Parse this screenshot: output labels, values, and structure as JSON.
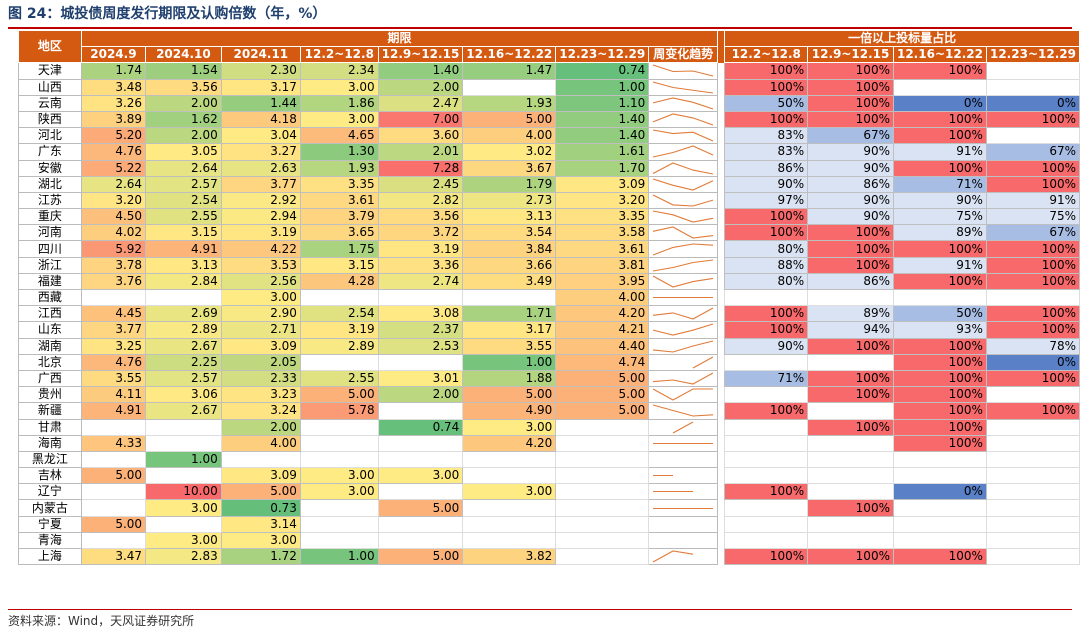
{
  "title": "图 24：城投债周度发行期限及认购倍数（年，%）",
  "source": "资料来源：Wind，天风证券研究所",
  "headers": {
    "region": "地区",
    "term_group": "期限",
    "ratio_group": "一倍以上投标量占比",
    "term_cols": [
      "2024.9",
      "2024.10",
      "2024.11",
      "12.2~12.8",
      "12.9~12.15",
      "12.16~12.22",
      "12.23~12.29"
    ],
    "trend_col": "周变化趋势",
    "ratio_cols": [
      "12.2~12.8",
      "12.9~12.15",
      "12.16~12.22",
      "12.23~12.29"
    ]
  },
  "colors": {
    "header_bg": "#d45a12",
    "red": "#f8696b",
    "light_blue": "#dae3f3",
    "mid_blue": "#a8bde3",
    "blue": "#5a80c8",
    "sparkline": "#e07b39"
  },
  "rows": [
    {
      "region": "天津",
      "terms": [
        "1.74",
        "1.54",
        "2.30",
        "2.34",
        "1.40",
        "1.47",
        "0.74"
      ],
      "ratios": [
        "100%",
        "100%",
        "100%",
        ""
      ]
    },
    {
      "region": "山西",
      "terms": [
        "3.48",
        "3.56",
        "3.17",
        "3.00",
        "2.00",
        "",
        "1.00"
      ],
      "ratios": [
        "100%",
        "100%",
        "",
        ""
      ]
    },
    {
      "region": "云南",
      "terms": [
        "3.26",
        "2.00",
        "1.44",
        "1.86",
        "2.47",
        "1.93",
        "1.10"
      ],
      "ratios": [
        "50%",
        "100%",
        "0%",
        "0%"
      ]
    },
    {
      "region": "陕西",
      "terms": [
        "3.89",
        "1.62",
        "4.18",
        "3.00",
        "7.00",
        "5.00",
        "1.40"
      ],
      "ratios": [
        "100%",
        "100%",
        "100%",
        "100%"
      ]
    },
    {
      "region": "河北",
      "terms": [
        "5.20",
        "2.00",
        "3.04",
        "4.65",
        "3.60",
        "4.00",
        "1.40"
      ],
      "ratios": [
        "83%",
        "67%",
        "100%",
        ""
      ]
    },
    {
      "region": "广东",
      "terms": [
        "4.76",
        "3.05",
        "3.27",
        "1.30",
        "2.01",
        "3.02",
        "1.61"
      ],
      "ratios": [
        "83%",
        "90%",
        "91%",
        "67%"
      ]
    },
    {
      "region": "安徽",
      "terms": [
        "5.22",
        "2.64",
        "2.63",
        "1.93",
        "7.28",
        "3.67",
        "1.70"
      ],
      "ratios": [
        "86%",
        "90%",
        "100%",
        "100%"
      ]
    },
    {
      "region": "湖北",
      "terms": [
        "2.64",
        "2.57",
        "3.77",
        "3.35",
        "2.45",
        "1.79",
        "3.09"
      ],
      "ratios": [
        "90%",
        "86%",
        "71%",
        "100%"
      ]
    },
    {
      "region": "江苏",
      "terms": [
        "3.20",
        "2.54",
        "2.92",
        "3.61",
        "2.82",
        "2.73",
        "3.20"
      ],
      "ratios": [
        "97%",
        "90%",
        "90%",
        "91%"
      ]
    },
    {
      "region": "重庆",
      "terms": [
        "4.50",
        "2.55",
        "2.94",
        "3.79",
        "3.56",
        "3.13",
        "3.35"
      ],
      "ratios": [
        "100%",
        "90%",
        "75%",
        "75%"
      ]
    },
    {
      "region": "河南",
      "terms": [
        "4.02",
        "3.15",
        "3.19",
        "3.65",
        "3.72",
        "3.54",
        "3.58"
      ],
      "ratios": [
        "100%",
        "100%",
        "89%",
        "67%"
      ]
    },
    {
      "region": "四川",
      "terms": [
        "5.92",
        "4.91",
        "4.22",
        "1.75",
        "3.19",
        "3.84",
        "3.61"
      ],
      "ratios": [
        "80%",
        "100%",
        "100%",
        "100%"
      ]
    },
    {
      "region": "浙江",
      "terms": [
        "3.78",
        "3.13",
        "3.53",
        "3.15",
        "3.36",
        "3.66",
        "3.81"
      ],
      "ratios": [
        "88%",
        "100%",
        "91%",
        "100%"
      ]
    },
    {
      "region": "福建",
      "terms": [
        "3.76",
        "2.84",
        "2.56",
        "4.28",
        "2.74",
        "3.49",
        "3.95"
      ],
      "ratios": [
        "80%",
        "86%",
        "100%",
        "100%"
      ]
    },
    {
      "region": "西藏",
      "terms": [
        "",
        "",
        "3.00",
        "",
        "",
        "",
        "4.00"
      ],
      "ratios": [
        "",
        "",
        "",
        ""
      ]
    },
    {
      "region": "江西",
      "terms": [
        "4.45",
        "2.69",
        "2.90",
        "2.54",
        "3.08",
        "1.71",
        "4.20"
      ],
      "ratios": [
        "100%",
        "89%",
        "50%",
        "100%"
      ]
    },
    {
      "region": "山东",
      "terms": [
        "3.77",
        "2.89",
        "2.71",
        "3.19",
        "2.37",
        "3.17",
        "4.21"
      ],
      "ratios": [
        "100%",
        "94%",
        "93%",
        "100%"
      ]
    },
    {
      "region": "湖南",
      "terms": [
        "3.25",
        "2.67",
        "3.09",
        "2.89",
        "2.53",
        "3.55",
        "4.40"
      ],
      "ratios": [
        "90%",
        "100%",
        "100%",
        "78%"
      ]
    },
    {
      "region": "北京",
      "terms": [
        "4.76",
        "2.25",
        "2.05",
        "",
        "",
        "1.00",
        "4.74"
      ],
      "ratios": [
        "",
        "",
        "100%",
        "0%"
      ]
    },
    {
      "region": "广西",
      "terms": [
        "3.55",
        "2.57",
        "2.33",
        "2.55",
        "3.01",
        "1.88",
        "5.00"
      ],
      "ratios": [
        "71%",
        "100%",
        "100%",
        "100%"
      ]
    },
    {
      "region": "贵州",
      "terms": [
        "4.11",
        "3.06",
        "3.23",
        "5.00",
        "2.00",
        "5.00",
        "5.00"
      ],
      "ratios": [
        "",
        "100%",
        "100%",
        ""
      ]
    },
    {
      "region": "新疆",
      "terms": [
        "4.91",
        "2.67",
        "3.24",
        "5.78",
        "",
        "4.90",
        "5.00"
      ],
      "ratios": [
        "100%",
        "",
        "100%",
        "100%"
      ]
    },
    {
      "region": "甘肃",
      "terms": [
        "",
        "",
        "2.00",
        "",
        "0.74",
        "3.00",
        ""
      ],
      "ratios": [
        "",
        "100%",
        "100%",
        ""
      ]
    },
    {
      "region": "海南",
      "terms": [
        "4.33",
        "",
        "4.00",
        "",
        "",
        "4.20",
        ""
      ],
      "ratios": [
        "",
        "",
        "100%",
        ""
      ]
    },
    {
      "region": "黑龙江",
      "terms": [
        "",
        "1.00",
        "",
        "",
        "",
        "",
        ""
      ],
      "ratios": [
        "",
        "",
        "",
        ""
      ]
    },
    {
      "region": "吉林",
      "terms": [
        "5.00",
        "",
        "3.09",
        "3.00",
        "3.00",
        "",
        ""
      ],
      "ratios": [
        "",
        "",
        "",
        ""
      ]
    },
    {
      "region": "辽宁",
      "terms": [
        "",
        "10.00",
        "5.00",
        "3.00",
        "",
        "3.00",
        ""
      ],
      "ratios": [
        "100%",
        "",
        "0%",
        ""
      ]
    },
    {
      "region": "内蒙古",
      "terms": [
        "",
        "3.00",
        "0.73",
        "",
        "5.00",
        "",
        ""
      ],
      "ratios": [
        "",
        "100%",
        "",
        ""
      ]
    },
    {
      "region": "宁夏",
      "terms": [
        "5.00",
        "",
        "3.14",
        "",
        "",
        "",
        ""
      ],
      "ratios": [
        "",
        "",
        "",
        ""
      ]
    },
    {
      "region": "青海",
      "terms": [
        "",
        "3.00",
        "3.00",
        "",
        "",
        "",
        ""
      ],
      "ratios": [
        "",
        "",
        "",
        ""
      ]
    },
    {
      "region": "上海",
      "terms": [
        "3.47",
        "2.83",
        "1.72",
        "1.00",
        "5.00",
        "3.82",
        ""
      ],
      "ratios": [
        "100%",
        "100%",
        "100%",
        ""
      ]
    }
  ]
}
